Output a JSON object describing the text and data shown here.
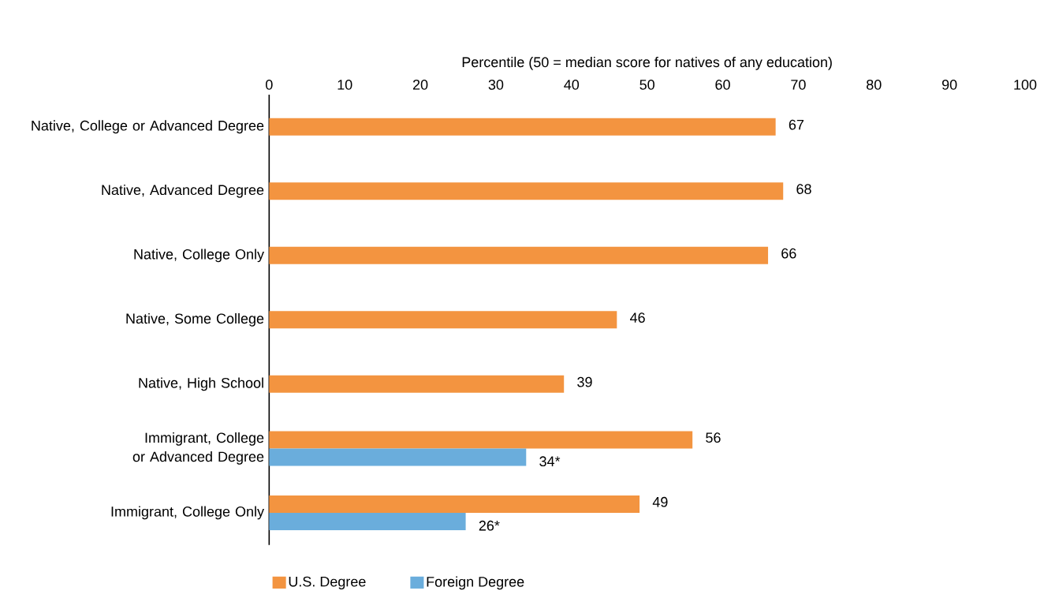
{
  "chart_data": {
    "type": "bar",
    "orientation": "horizontal",
    "xlabel": "Percentile (50 = median score for natives of any education)",
    "categories": [
      "Native, College or Advanced Degree",
      "Native, Advanced Degree",
      "Native, College Only",
      "Native, Some College",
      "Native, High School",
      "Immigrant, College or Advanced Degree",
      "Immigrant, College Only"
    ],
    "series": [
      {
        "name": "U.S. Degree",
        "color": "#f39440",
        "values": [
          67,
          68,
          66,
          46,
          39,
          56,
          49
        ],
        "value_labels": [
          "67",
          "68",
          "66",
          "46",
          "39",
          "56",
          "49"
        ]
      },
      {
        "name": "Foreign Degree",
        "color": "#6aaddc",
        "values": [
          null,
          null,
          null,
          null,
          null,
          34,
          26
        ],
        "value_labels": [
          null,
          null,
          null,
          null,
          null,
          "34*",
          "26*"
        ]
      }
    ],
    "xlim": [
      0,
      100
    ],
    "xticks": [
      0,
      10,
      20,
      30,
      40,
      50,
      60,
      70,
      80,
      90,
      100
    ],
    "legend": "bottom"
  }
}
